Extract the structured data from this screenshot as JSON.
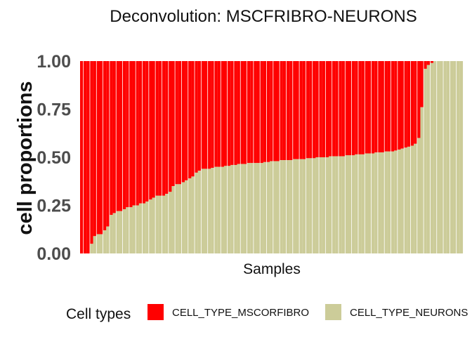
{
  "chart_data": {
    "type": "bar",
    "stacked": true,
    "title": "Deconvolution: MSCFRIBRO-NEURONS",
    "xlabel": "Samples",
    "ylabel": "cell proportions",
    "ylim": [
      0,
      1
    ],
    "yticks": [
      "0.00",
      "0.25",
      "0.50",
      "0.75",
      "1.00"
    ],
    "x_tick_labels_shown": false,
    "legend": {
      "title": "Cell types",
      "position": "bottom"
    },
    "series": [
      {
        "name": "CELL_TYPE_MSCORFIBRO",
        "color": "#ff0000",
        "values_note": "complement of CELL_TYPE_NEURONS"
      },
      {
        "name": "CELL_TYPE_NEURONS",
        "color": "#cccc99",
        "values": [
          0.0,
          0.0,
          0.0,
          0.05,
          0.09,
          0.1,
          0.1,
          0.12,
          0.14,
          0.2,
          0.21,
          0.22,
          0.22,
          0.23,
          0.24,
          0.24,
          0.25,
          0.25,
          0.26,
          0.26,
          0.27,
          0.28,
          0.29,
          0.3,
          0.3,
          0.3,
          0.31,
          0.32,
          0.35,
          0.36,
          0.36,
          0.37,
          0.38,
          0.39,
          0.4,
          0.42,
          0.43,
          0.44,
          0.44,
          0.44,
          0.445,
          0.45,
          0.45,
          0.45,
          0.455,
          0.455,
          0.46,
          0.46,
          0.465,
          0.465,
          0.465,
          0.47,
          0.47,
          0.47,
          0.47,
          0.47,
          0.475,
          0.475,
          0.48,
          0.48,
          0.48,
          0.485,
          0.485,
          0.485,
          0.485,
          0.49,
          0.49,
          0.49,
          0.49,
          0.495,
          0.495,
          0.495,
          0.5,
          0.5,
          0.5,
          0.5,
          0.505,
          0.505,
          0.505,
          0.505,
          0.505,
          0.51,
          0.51,
          0.51,
          0.515,
          0.515,
          0.515,
          0.52,
          0.52,
          0.52,
          0.525,
          0.525,
          0.525,
          0.53,
          0.53,
          0.53,
          0.535,
          0.54,
          0.545,
          0.55,
          0.555,
          0.56,
          0.57,
          0.6,
          0.76,
          0.96,
          0.98,
          0.99,
          1.0,
          1.0,
          1.0,
          1.0,
          1.0,
          1.0,
          1.0,
          1.0,
          1.0
        ]
      }
    ]
  }
}
